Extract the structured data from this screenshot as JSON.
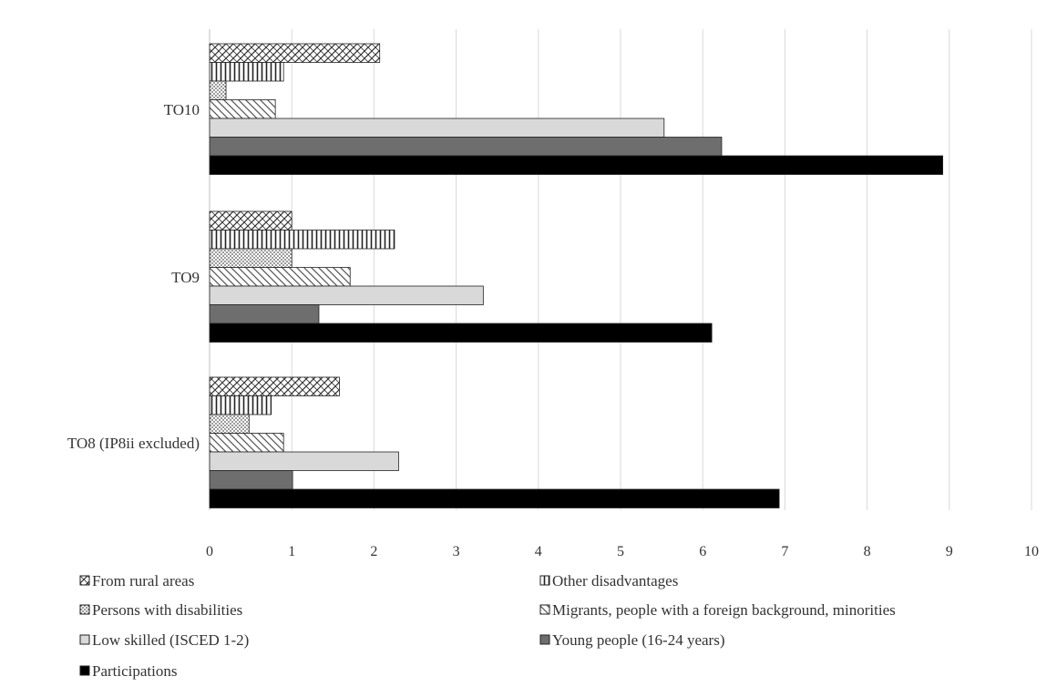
{
  "chart_data": {
    "type": "bar",
    "orientation": "horizontal",
    "categories": [
      "TO10",
      "TO9",
      "TO8 (IP8ii excluded)"
    ],
    "series": [
      {
        "name": "From rural areas",
        "values": [
          2.07,
          1.0,
          1.58
        ],
        "pattern": "diag-cross"
      },
      {
        "name": "Other disadvantages",
        "values": [
          0.9,
          2.25,
          0.75
        ],
        "pattern": "vertical"
      },
      {
        "name": "Persons with disabilities",
        "values": [
          0.2,
          1.0,
          0.48
        ],
        "pattern": "dots"
      },
      {
        "name": "Migrants, people with a foreign background, minorities",
        "values": [
          0.8,
          1.71,
          0.9
        ],
        "pattern": "diag"
      },
      {
        "name": "Low skilled (ISCED 1-2)",
        "values": [
          5.53,
          3.33,
          2.3
        ],
        "pattern": "light"
      },
      {
        "name": "Young people (16-24 years)",
        "values": [
          6.23,
          1.33,
          1.01
        ],
        "pattern": "dark"
      },
      {
        "name": "Participations",
        "values": [
          8.92,
          6.11,
          6.93
        ],
        "pattern": "black"
      }
    ],
    "xticks": [
      "0",
      "1",
      "2",
      "3",
      "4",
      "5",
      "6",
      "7",
      "8",
      "9",
      "10"
    ],
    "xlim": [
      0,
      10
    ],
    "grid": true,
    "legend_position": "bottom",
    "colors": {
      "black": "#000000",
      "dark": "#6e6e6e",
      "light": "#d9d9d9",
      "grid": "#d9d9d9",
      "axis": "#bfbfbf"
    }
  }
}
